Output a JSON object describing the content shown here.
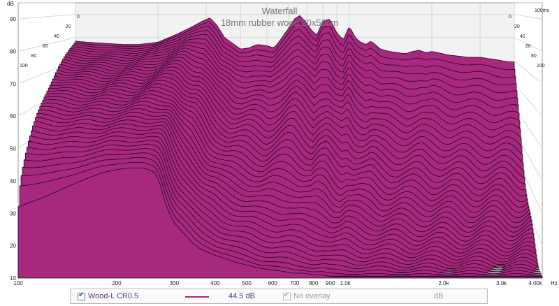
{
  "chart_data": {
    "type": "area",
    "subtype": "waterfall-3d",
    "title": "Waterfall",
    "subtitle": "18mm rubber wood 20x50cm",
    "x_unit": "Hz",
    "y_unit": "dB",
    "x_scale": "log",
    "xlim": [
      100,
      4000
    ],
    "ylim": [
      10,
      95
    ],
    "x_ticks": [
      100,
      200,
      300,
      400,
      500,
      600,
      700,
      800,
      900,
      1000,
      2000,
      3000,
      4000
    ],
    "x_tick_labels": [
      "100",
      "200",
      "300",
      "400",
      "500",
      "600",
      "700",
      "800",
      "900",
      "1.0k",
      "2.0k",
      "3.0k",
      "4.00k"
    ],
    "y_ticks": [
      10,
      20,
      30,
      40,
      50,
      60,
      70,
      80,
      90
    ],
    "depth_unit": "ms",
    "depth_ticks": [
      "0",
      "20",
      "40",
      "60",
      "80",
      "100"
    ],
    "depth_last_label": "100ms",
    "fill_color": "#a8287f",
    "line_color": "#1a0a1a",
    "grid": true,
    "slices": 40,
    "front_profile": {
      "x": [
        100,
        120,
        140,
        160,
        180,
        200,
        220,
        240,
        260,
        270,
        280,
        290,
        300,
        320,
        340,
        360,
        380,
        400,
        430,
        460,
        500,
        550,
        600,
        650,
        700,
        750,
        800,
        850,
        900,
        950,
        1000,
        1100,
        1200,
        1400,
        1600,
        1800,
        2000,
        2300,
        2600,
        3000,
        3400,
        3800,
        4000
      ],
      "y": [
        32,
        35,
        38,
        40.5,
        42.5,
        43.5,
        44,
        44,
        43,
        40,
        34,
        30,
        27,
        24,
        21,
        19,
        18,
        17,
        16,
        15,
        14,
        13,
        12.5,
        12,
        11.5,
        11.5,
        11,
        11,
        10.5,
        10.5,
        10.5,
        10.5,
        10.5,
        10.5,
        10.5,
        10.5,
        10.5,
        10.5,
        10.5,
        10.5,
        10.5,
        10.5,
        10.5
      ]
    },
    "back_profile": {
      "x": [
        100,
        110,
        130,
        150,
        170,
        200,
        230,
        260,
        290,
        310,
        330,
        350,
        380,
        400,
        430,
        460,
        500,
        530,
        560,
        600,
        630,
        660,
        700,
        730,
        760,
        800,
        850,
        900,
        950,
        1000,
        1050,
        1100,
        1150,
        1200,
        1300,
        1400,
        1500,
        1600,
        1700,
        1800,
        1900,
        2000,
        2100,
        2200,
        2300,
        2500,
        2700,
        3000,
        3200,
        3400,
        3600,
        3800,
        4000
      ],
      "y": [
        78.5,
        78,
        77.5,
        77,
        77,
        78,
        81,
        84,
        87,
        88.5,
        85,
        80,
        77,
        75,
        75.5,
        77,
        76.5,
        75.5,
        79,
        84,
        88,
        89.5,
        86,
        83,
        81,
        87,
        88,
        82,
        79,
        85,
        80,
        78,
        77,
        78.5,
        75,
        74,
        73.5,
        73,
        74,
        74.5,
        73.5,
        74,
        73.5,
        73,
        72.5,
        72,
        71.5,
        71.5,
        71,
        70.5,
        70,
        69.5,
        69.5
      ]
    }
  },
  "legend": {
    "series_name": "Wood-L CR0.5",
    "series_checked": true,
    "series_color": "#a8287f",
    "series_value": "44.5 dB",
    "overlay_label": "No overlay",
    "overlay_checked": true,
    "overlay_enabled": false,
    "overlay_unit": "dB"
  }
}
